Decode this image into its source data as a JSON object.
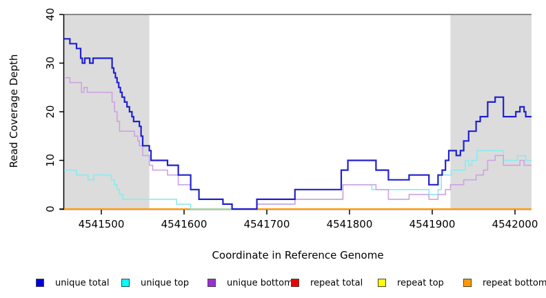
{
  "chart_data": {
    "type": "line",
    "subtype": "step-coverage-plot",
    "xlabel": "Coordinate in Reference Genome",
    "ylabel": "Read Coverage Depth",
    "xlim": [
      4541455,
      4542020
    ],
    "ylim": [
      0,
      40
    ],
    "x_ticks": [
      4541500,
      4541600,
      4541700,
      4541800,
      4541900,
      4542000
    ],
    "y_ticks": [
      0,
      10,
      20,
      30,
      40
    ],
    "grid": false,
    "legend_position": "bottom",
    "shaded_regions": [
      {
        "name": "left-repeat-region",
        "from": 4541455,
        "to": 4541558,
        "color": "#dcdcdc"
      },
      {
        "name": "right-repeat-region",
        "from": 4541922,
        "to": 4542020,
        "color": "#dcdcdc"
      }
    ],
    "top_border_color": "#888888",
    "axis_color": "#000000",
    "series": [
      {
        "name": "unique total",
        "color": "#2020cf",
        "line_width": 2.2,
        "points": [
          [
            4541455,
            35
          ],
          [
            4541462,
            34
          ],
          [
            4541470,
            33
          ],
          [
            4541475,
            31
          ],
          [
            4541477,
            30
          ],
          [
            4541480,
            31
          ],
          [
            4541486,
            30
          ],
          [
            4541490,
            31
          ],
          [
            4541513,
            29
          ],
          [
            4541515,
            28
          ],
          [
            4541517,
            27
          ],
          [
            4541519,
            26
          ],
          [
            4541521,
            25
          ],
          [
            4541523,
            24
          ],
          [
            4541525,
            23
          ],
          [
            4541528,
            22
          ],
          [
            4541531,
            21
          ],
          [
            4541534,
            20
          ],
          [
            4541537,
            19
          ],
          [
            4541539,
            18
          ],
          [
            4541546,
            17
          ],
          [
            4541548,
            15
          ],
          [
            4541550,
            13
          ],
          [
            4541558,
            12
          ],
          [
            4541560,
            10
          ],
          [
            4541580,
            9
          ],
          [
            4541593,
            7
          ],
          [
            4541608,
            4
          ],
          [
            4541618,
            2
          ],
          [
            4541647,
            1
          ],
          [
            4541658,
            0
          ],
          [
            4541688,
            2
          ],
          [
            4541734,
            4
          ],
          [
            4541790,
            8
          ],
          [
            4541798,
            10
          ],
          [
            4541832,
            8
          ],
          [
            4541847,
            6
          ],
          [
            4541872,
            7
          ],
          [
            4541896,
            5
          ],
          [
            4541907,
            7
          ],
          [
            4541912,
            8
          ],
          [
            4541916,
            10
          ],
          [
            4541920,
            12
          ],
          [
            4541929,
            11
          ],
          [
            4541934,
            12
          ],
          [
            4541938,
            14
          ],
          [
            4541944,
            16
          ],
          [
            4541953,
            18
          ],
          [
            4541958,
            19
          ],
          [
            4541967,
            22
          ],
          [
            4541976,
            23
          ],
          [
            4541986,
            19
          ],
          [
            4542001,
            20
          ],
          [
            4542006,
            21
          ],
          [
            4542011,
            20
          ],
          [
            4542013,
            19
          ]
        ]
      },
      {
        "name": "unique top",
        "color": "#87ecf0",
        "line_width": 1.6,
        "points": [
          [
            4541455,
            8
          ],
          [
            4541470,
            7
          ],
          [
            4541484,
            6
          ],
          [
            4541491,
            7
          ],
          [
            4541512,
            6
          ],
          [
            4541516,
            5
          ],
          [
            4541519,
            4
          ],
          [
            4541522,
            3
          ],
          [
            4541526,
            2
          ],
          [
            4541591,
            1
          ],
          [
            4541608,
            0
          ],
          [
            4541688,
            1
          ],
          [
            4541734,
            2
          ],
          [
            4541792,
            5
          ],
          [
            4541827,
            4
          ],
          [
            4541896,
            3
          ],
          [
            4541907,
            4
          ],
          [
            4541911,
            7
          ],
          [
            4541923,
            8
          ],
          [
            4541940,
            10
          ],
          [
            4541944,
            9
          ],
          [
            4541948,
            10
          ],
          [
            4541954,
            12
          ],
          [
            4541986,
            10
          ],
          [
            4542003,
            11
          ],
          [
            4542013,
            10
          ]
        ]
      },
      {
        "name": "unique bottom",
        "color": "#cda2e2",
        "line_width": 1.6,
        "points": [
          [
            4541455,
            27
          ],
          [
            4541462,
            26
          ],
          [
            4541476,
            24
          ],
          [
            4541479,
            25
          ],
          [
            4541483,
            24
          ],
          [
            4541513,
            22
          ],
          [
            4541516,
            20
          ],
          [
            4541519,
            18
          ],
          [
            4541522,
            16
          ],
          [
            4541540,
            15
          ],
          [
            4541544,
            14
          ],
          [
            4541546,
            13
          ],
          [
            4541550,
            11
          ],
          [
            4541558,
            9
          ],
          [
            4541562,
            8
          ],
          [
            4541580,
            7
          ],
          [
            4541593,
            5
          ],
          [
            4541608,
            4
          ],
          [
            4541618,
            2
          ],
          [
            4541647,
            1
          ],
          [
            4541658,
            0
          ],
          [
            4541688,
            1
          ],
          [
            4541734,
            2
          ],
          [
            4541792,
            5
          ],
          [
            4541832,
            4
          ],
          [
            4541847,
            2
          ],
          [
            4541872,
            3
          ],
          [
            4541896,
            2
          ],
          [
            4541907,
            3
          ],
          [
            4541916,
            4
          ],
          [
            4541922,
            5
          ],
          [
            4541938,
            6
          ],
          [
            4541953,
            7
          ],
          [
            4541962,
            8
          ],
          [
            4541967,
            10
          ],
          [
            4541976,
            11
          ],
          [
            4541986,
            9
          ],
          [
            4542006,
            10
          ],
          [
            4542011,
            9
          ]
        ]
      },
      {
        "name": "repeat total",
        "color": "#dd0000",
        "line_width": 1.2,
        "points": [
          [
            4541455,
            0
          ]
        ]
      },
      {
        "name": "repeat top",
        "color": "#f3eb00",
        "line_width": 1.2,
        "points": [
          [
            4541455,
            0
          ]
        ]
      },
      {
        "name": "repeat bottom",
        "color": "#ff9d13",
        "line_width": 2.2,
        "points": [
          [
            4541455,
            0
          ]
        ]
      }
    ]
  },
  "axis_titles": {
    "x": "Coordinate in Reference Genome",
    "y": "Read Coverage Depth"
  },
  "legend": {
    "items": [
      {
        "label": "unique total",
        "color": "#0000e0"
      },
      {
        "label": "unique top",
        "color": "#00ffff"
      },
      {
        "label": "unique bottom",
        "color": "#9a30d0"
      },
      {
        "label": "repeat total",
        "color": "#ee0000"
      },
      {
        "label": "repeat top",
        "color": "#ffff00"
      },
      {
        "label": "repeat bottom",
        "color": "#ff9900"
      }
    ]
  }
}
